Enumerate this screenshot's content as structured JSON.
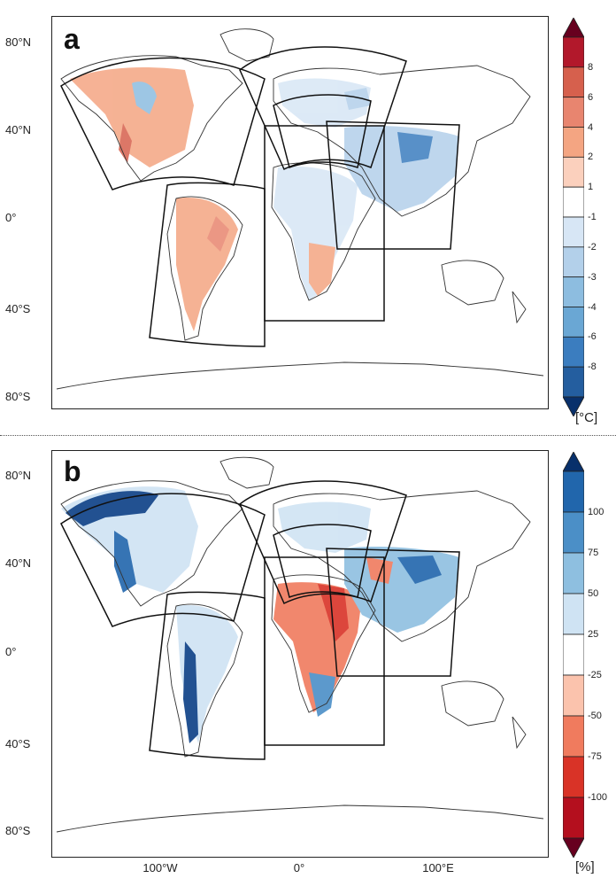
{
  "panels": [
    {
      "letter": "a",
      "unit": "[°C]",
      "lat_labels": [
        "80°N",
        "40°N",
        "0°",
        "40°S",
        "80°S"
      ],
      "colorbar": {
        "ticks": [
          "8",
          "6",
          "4",
          "2",
          "1",
          "-1",
          "-2",
          "-3",
          "-4",
          "-6",
          "-8"
        ],
        "colors": [
          "#b2182b",
          "#d6604d",
          "#e8856f",
          "#f4a582",
          "#fbd0bd",
          "#ffffff",
          "#d7e6f5",
          "#b3d0ea",
          "#8dbde0",
          "#6aa7d4",
          "#3b7dbf",
          "#245e9f"
        ],
        "end_colors": {
          "top": "#67001f",
          "bottom": "#08306b"
        }
      }
    },
    {
      "letter": "b",
      "unit": "[%]",
      "lat_labels": [
        "80°N",
        "40°N",
        "0°",
        "40°S",
        "80°S"
      ],
      "lon_labels": [
        "100°W",
        "0°",
        "100°E"
      ],
      "colorbar": {
        "ticks": [
          "100",
          "75",
          "50",
          "25",
          "-25",
          "-50",
          "-75",
          "-100"
        ],
        "colors": [
          "#2166ac",
          "#4b8fc7",
          "#8ebfe0",
          "#cfe3f3",
          "#ffffff",
          "#fbc3ad",
          "#f07b5e",
          "#d93327",
          "#b40f1e"
        ],
        "end_colors": {
          "top": "#08306b",
          "bottom": "#67001f"
        }
      }
    }
  ],
  "colors": {
    "frame": "#222222",
    "coast": "#333333",
    "domain_box": "#111111",
    "warm": "#e06650",
    "cool": "#6ea4d3",
    "dark_blue": "#0b3f86",
    "dark_red": "#c0202a"
  }
}
